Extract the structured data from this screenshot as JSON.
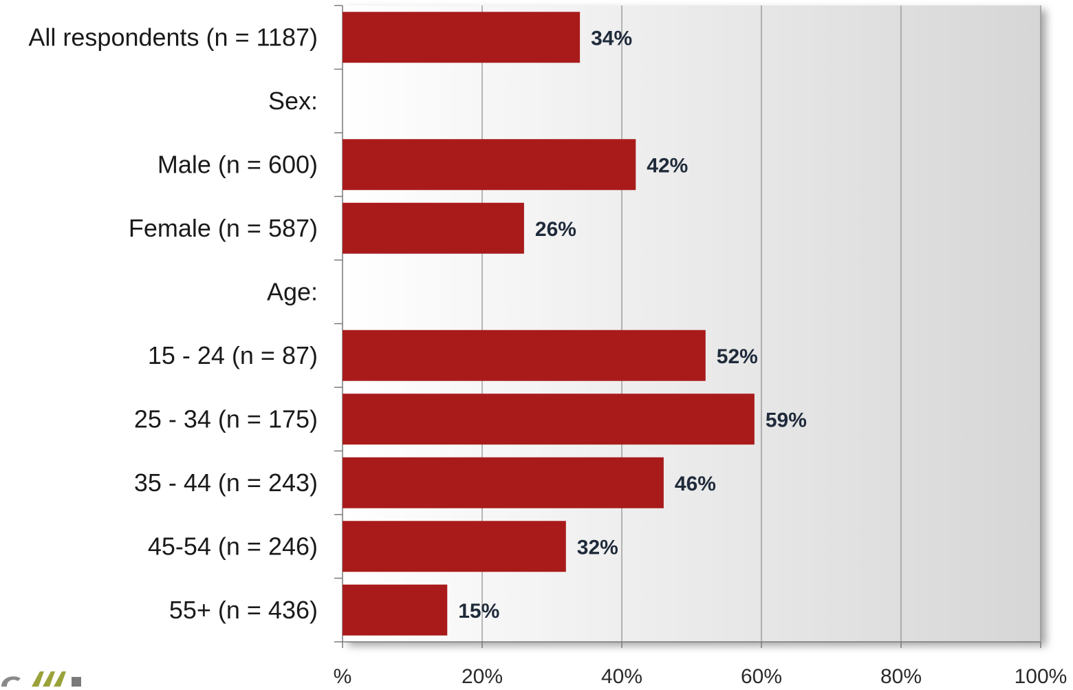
{
  "chart_data": {
    "type": "bar",
    "orientation": "horizontal",
    "title": "",
    "xlabel": "",
    "ylabel": "",
    "xlim": [
      0,
      100
    ],
    "grid": true,
    "legend": "none",
    "categories": [
      "All respondents (n = 1187)",
      "Sex:",
      "Male (n = 600)",
      "Female (n = 587)",
      "Age:",
      "15 - 24 (n = 87)",
      "25 - 34 (n = 175)",
      "35 - 44 (n = 243)",
      "45-54 (n = 246)",
      "55+ (n = 436)"
    ],
    "values": [
      34,
      null,
      42,
      26,
      null,
      52,
      59,
      46,
      32,
      15
    ],
    "data_labels": [
      "34%",
      "",
      "42%",
      "26%",
      "",
      "52%",
      "59%",
      "46%",
      "32%",
      "15%"
    ],
    "x_ticks": [
      0,
      20,
      40,
      60,
      80,
      100
    ],
    "x_tick_labels": [
      "%",
      "20%",
      "40%",
      "60%",
      "80%",
      "100%"
    ],
    "colors": {
      "bar": "#a91b1b",
      "plot_bg_left": "#ffffff",
      "plot_bg_right": "#d8d8d8",
      "grid": "#8a8a8a",
      "axis": "#7a7a7a"
    }
  },
  "logo": {
    "icon": "logo-mark"
  }
}
